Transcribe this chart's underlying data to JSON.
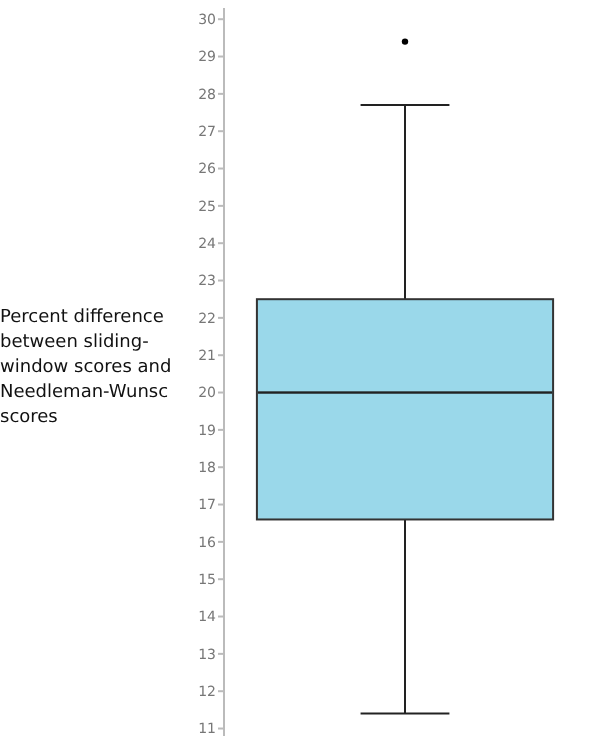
{
  "chart_data": {
    "type": "box",
    "ylabel": "Percent difference between sliding-window scores and Needleman-Wunsc scores",
    "categories": [
      null
    ],
    "boxes": [
      {
        "low": 11.4,
        "q1": 16.6,
        "median": 20.0,
        "q3": 22.5,
        "high": 27.7,
        "outliers": [
          29.4
        ]
      }
    ],
    "color": "#9ad8ea",
    "ylim": [
      10.8,
      30.3
    ],
    "yticks": [
      11,
      12,
      13,
      14,
      15,
      16,
      17,
      18,
      19,
      20,
      21,
      22,
      23,
      24,
      25,
      26,
      27,
      28,
      29,
      30
    ],
    "grid": false
  }
}
